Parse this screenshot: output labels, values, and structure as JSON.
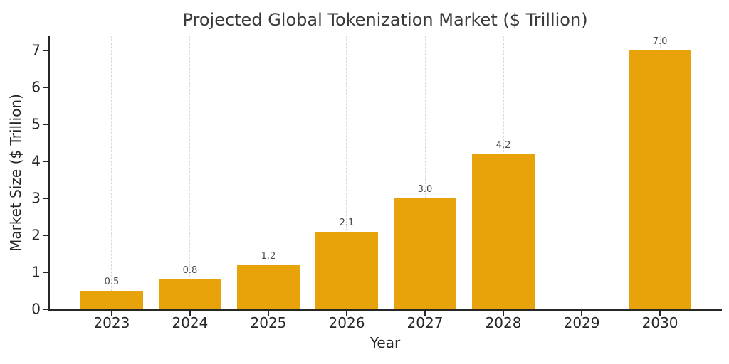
{
  "chart_data": {
    "type": "bar",
    "title": "Projected Global Tokenization Market ($ Trillion)",
    "xlabel": "Year",
    "ylabel": "Market Size ($ Trillion)",
    "categories": [
      "2023",
      "2024",
      "2025",
      "2026",
      "2027",
      "2028",
      "2029",
      "2030"
    ],
    "values": [
      0.5,
      0.8,
      1.2,
      2.1,
      3.0,
      4.2,
      null,
      7.0
    ],
    "bar_labels": [
      "0.5",
      "0.8",
      "1.2",
      "2.1",
      "3.0",
      "4.2",
      "",
      "7.0"
    ],
    "yticks": [
      0,
      1,
      2,
      3,
      4,
      5,
      6,
      7
    ],
    "ylim": [
      0,
      7.4
    ],
    "grid": true,
    "grid_style": "dashed",
    "grid_color": "#d8d8d8",
    "bar_color": "#E8A30B",
    "spine_color": "#262626",
    "legend": "none"
  }
}
